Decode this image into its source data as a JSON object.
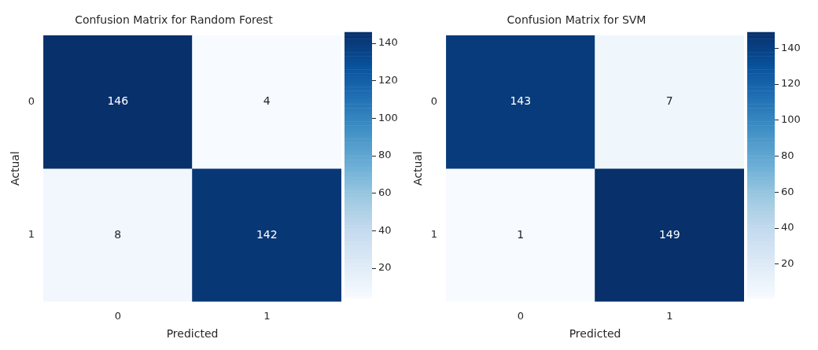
{
  "chart_data": [
    {
      "type": "heatmap",
      "title": "Confusion Matrix for Random Forest",
      "xlabel": "Predicted",
      "ylabel": "Actual",
      "categories": [
        "0",
        "1"
      ],
      "y_categories": [
        "0",
        "1"
      ],
      "cells": [
        [
          146,
          4
        ],
        [
          8,
          142
        ]
      ],
      "clim": [
        4,
        146
      ],
      "cticks": [
        20,
        40,
        60,
        80,
        100,
        120,
        140
      ],
      "data_labels": true
    },
    {
      "type": "heatmap",
      "title": "Confusion Matrix for SVM",
      "xlabel": "Predicted",
      "ylabel": "Actual",
      "categories": [
        "0",
        "1"
      ],
      "y_categories": [
        "0",
        "1"
      ],
      "cells": [
        [
          143,
          7
        ],
        [
          1,
          149
        ]
      ],
      "clim": [
        1,
        149
      ],
      "cticks": [
        20,
        40,
        60,
        80,
        100,
        120,
        140
      ],
      "data_labels": true
    }
  ]
}
